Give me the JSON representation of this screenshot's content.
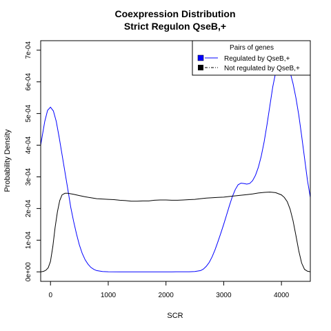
{
  "chart_data": {
    "type": "line",
    "title": "Coexpression Distribution",
    "subtitle": "Strict Regulon QseB,+",
    "xlabel": "SCR",
    "ylabel": "Probability Density",
    "xlim": [
      -170,
      4500
    ],
    "ylim": [
      -3e-05,
      0.00073
    ],
    "x_ticks": [
      0,
      1000,
      2000,
      3000,
      4000
    ],
    "x_tick_labels": [
      "0",
      "1000",
      "2000",
      "3000",
      "4000"
    ],
    "y_ticks": [
      0,
      0.0001,
      0.0002,
      0.0003,
      0.0004,
      0.0005,
      0.0006,
      0.0007
    ],
    "y_tick_labels": [
      "0e+00",
      "1e-04",
      "2e-04",
      "3e-04",
      "4e-04",
      "5e-04",
      "6e-04",
      "7e-04"
    ],
    "grid": false,
    "legend": {
      "title": "Pairs of genes",
      "position": "top-right",
      "entries": [
        "Regulated by  QseB,+",
        "Not regulated by  QseB,+"
      ]
    },
    "series": [
      {
        "name": "Regulated by  QseB,+",
        "color": "#0000ff",
        "x": [
          -170,
          -100,
          -50,
          0,
          50,
          100,
          150,
          200,
          250,
          300,
          350,
          400,
          450,
          500,
          550,
          600,
          650,
          700,
          750,
          800,
          900,
          1000,
          1200,
          1500,
          1800,
          2100,
          2400,
          2500,
          2600,
          2650,
          2700,
          2750,
          2800,
          2850,
          2900,
          2950,
          3000,
          3050,
          3100,
          3150,
          3200,
          3250,
          3300,
          3350,
          3400,
          3450,
          3500,
          3550,
          3600,
          3650,
          3700,
          3750,
          3800,
          3850,
          3900,
          3950,
          4000,
          4050,
          4100,
          4150,
          4200,
          4250,
          4300,
          4350,
          4400,
          4450,
          4500
        ],
        "y": [
          0.0004,
          0.000475,
          0.00051,
          0.00052,
          0.000508,
          0.000475,
          0.000425,
          0.00037,
          0.000315,
          0.00026,
          0.000205,
          0.00016,
          0.00012,
          8.5e-05,
          5.8e-05,
          3.8e-05,
          2.4e-05,
          1.4e-05,
          8e-06,
          4e-06,
          1e-06,
          3e-07,
          0,
          0,
          0,
          0,
          3e-07,
          1e-06,
          4e-06,
          9e-06,
          1.8e-05,
          3e-05,
          4.8e-05,
          7e-05,
          9.5e-05,
          0.000122,
          0.00015,
          0.00018,
          0.00021,
          0.000238,
          0.00026,
          0.000275,
          0.00028,
          0.000279,
          0.000277,
          0.000279,
          0.000288,
          0.000305,
          0.00033,
          0.000365,
          0.00041,
          0.000465,
          0.000525,
          0.000585,
          0.00063,
          0.000655,
          0.00066,
          0.00066,
          0.00065,
          0.00063,
          0.000595,
          0.00055,
          0.000495,
          0.00043,
          0.00036,
          0.00029,
          0.000235
        ]
      },
      {
        "name": "Not regulated by  QseB,+",
        "color": "#000000",
        "x": [
          -170,
          -120,
          -80,
          -40,
          0,
          40,
          80,
          120,
          160,
          200,
          250,
          300,
          400,
          500,
          600,
          700,
          800,
          900,
          1000,
          1100,
          1200,
          1300,
          1400,
          1500,
          1600,
          1700,
          1800,
          1900,
          2000,
          2100,
          2200,
          2300,
          2400,
          2500,
          2600,
          2700,
          2800,
          2900,
          3000,
          3100,
          3200,
          3300,
          3400,
          3500,
          3600,
          3700,
          3800,
          3900,
          4000,
          4050,
          4100,
          4150,
          4200,
          4250,
          4300,
          4350,
          4400,
          4450,
          4500
        ],
        "y": [
          0,
          1.5e-06,
          5e-06,
          1.3e-05,
          3.3e-05,
          8e-05,
          0.00014,
          0.00019,
          0.000225,
          0.000243,
          0.000248,
          0.000248,
          0.000245,
          0.000241,
          0.000237,
          0.000234,
          0.000231,
          0.00023,
          0.000229,
          0.000228,
          0.000226,
          0.000225,
          0.000223,
          0.000223,
          0.000224,
          0.000224,
          0.000226,
          0.000227,
          0.000227,
          0.000226,
          0.000226,
          0.000227,
          0.000228,
          0.000229,
          0.000231,
          0.000233,
          0.000234,
          0.000235,
          0.000236,
          0.000238,
          0.00024,
          0.000242,
          0.000244,
          0.000246,
          0.000249,
          0.000251,
          0.000252,
          0.00025,
          0.000243,
          0.000235,
          0.000222,
          0.000198,
          0.000162,
          0.000115,
          6.6e-05,
          2.8e-05,
          8e-06,
          2e-06,
          3e-07
        ]
      }
    ]
  }
}
